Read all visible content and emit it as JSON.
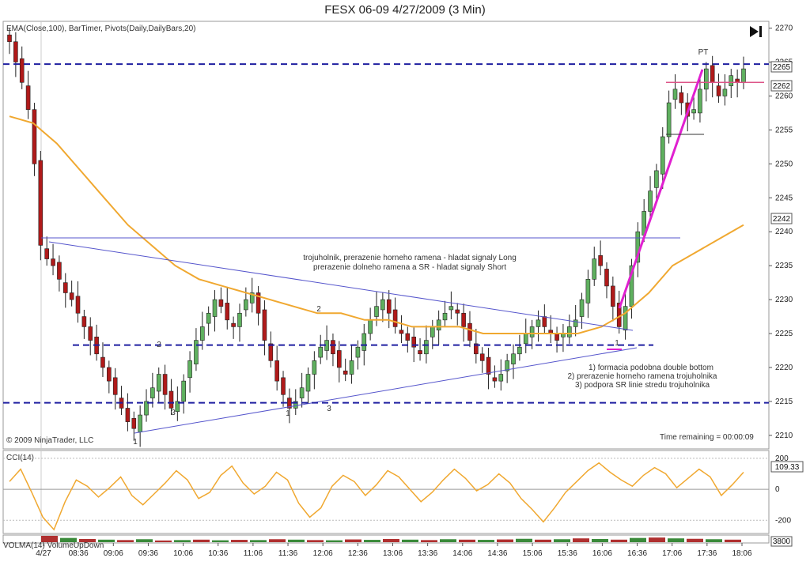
{
  "window": {
    "title": "FESX 06-09  4/27/2009 (3 Min)"
  },
  "header": {
    "indicators": "EMA(Close,100), BarTimer, Pivots(Daily,DailyBars,20)",
    "play_icon": "skip-to-end-icon"
  },
  "footer": {
    "copyright": "© 2009 NinjaTrader, LLC",
    "timer": "Time remaining = 00:00:09"
  },
  "annotations": {
    "note1_line1": "trojuholnik, prerazenie horneho ramena - hladat signaly Long",
    "note1_line2": "prerazenie dolneho ramena a SR - hladat signaly Short",
    "note2_line1": "1) formacia podobna double bottom",
    "note2_line2": "2) prerazenie horneho ramena trojuholnika",
    "note2_line3": "3) podpora SR linie stredu trojuholnika",
    "pt": "PT",
    "marks": [
      "1",
      "2",
      "3",
      "2",
      "1",
      "3",
      "1"
    ]
  },
  "price_axis": {
    "ticks": [
      "2270",
      "2265",
      "2260",
      "2255",
      "2250",
      "2245",
      "2240",
      "2235",
      "2230",
      "2225",
      "2220",
      "2215",
      "2210"
    ],
    "badges": [
      "2265",
      "2262",
      "2242"
    ]
  },
  "cci_panel": {
    "label": "CCI(14)",
    "ticks": [
      "200",
      "0",
      "-200"
    ],
    "badge": "109.33"
  },
  "volume_panel": {
    "label": "VOLMA(14) VolumeUpDown",
    "badge": "3800"
  },
  "time_axis": {
    "ticks": [
      "4/27",
      "08:36",
      "09:06",
      "09:36",
      "10:06",
      "10:36",
      "11:06",
      "11:36",
      "12:06",
      "12:36",
      "13:06",
      "13:36",
      "14:06",
      "14:36",
      "15:06",
      "15:36",
      "16:06",
      "16:36",
      "17:06",
      "17:36",
      "18:06"
    ]
  },
  "chart_data": {
    "type": "candlestick",
    "title": "FESX 06-09  4/27/2009 (3 Min)",
    "ylim": [
      2208,
      2271
    ],
    "levels": {
      "upper_sr": 2264.7,
      "middle_sr": 2223.3,
      "lower_sr": 2214.8,
      "pt_line": 2262
    },
    "closes": [
      2268,
      2265,
      2262,
      2258,
      2250,
      2238,
      2236,
      2235,
      2233,
      2231,
      2230,
      2228,
      2226,
      2224,
      2222,
      2220,
      2218,
      2216,
      2214,
      2212,
      2211,
      2213,
      2215,
      2217,
      2219,
      2216,
      2214,
      2215,
      2218,
      2221,
      2224,
      2226,
      2228,
      2230,
      2229,
      2227,
      2226,
      2228,
      2230,
      2231,
      2228,
      2224,
      2221,
      2218,
      2216,
      2214,
      2215,
      2217,
      2219,
      2221,
      2223,
      2224,
      2222,
      2220,
      2219,
      2221,
      2223,
      2225,
      2227,
      2229,
      2230,
      2228,
      2226,
      2225,
      2224,
      2223,
      2222,
      2224,
      2226,
      2227,
      2228,
      2229,
      2228,
      2226,
      2224,
      2222,
      2221,
      2219,
      2218,
      2219,
      2221,
      2222,
      2223,
      2225,
      2226,
      2227,
      2226,
      2225,
      2224,
      2225,
      2226,
      2227,
      2230,
      2233,
      2236,
      2235,
      2232,
      2229,
      2226,
      2229,
      2235,
      2240,
      2243,
      2246,
      2249,
      2254,
      2259,
      2261,
      2259,
      2257,
      2258,
      2261,
      2264,
      2262,
      2260,
      2261,
      2263,
      2262,
      2264
    ],
    "ema": [
      2257,
      2256,
      2253,
      2249,
      2245,
      2241,
      2238,
      2235,
      2233,
      2232,
      2231,
      2230,
      2229,
      2228,
      2228,
      2227,
      2227,
      2226,
      2226,
      2226,
      2225,
      2225,
      2225,
      2225,
      2225,
      2226,
      2228,
      2231,
      2235,
      2237,
      2239,
      2241
    ],
    "cci": {
      "ylim": [
        -280,
        240
      ],
      "ticks": [
        200,
        0,
        -200
      ],
      "last": 109.33,
      "values": [
        50,
        130,
        -20,
        -180,
        -260,
        -80,
        60,
        20,
        -50,
        10,
        80,
        -40,
        -100,
        -30,
        40,
        120,
        60,
        -60,
        -20,
        90,
        150,
        40,
        -30,
        20,
        110,
        60,
        -90,
        -180,
        -120,
        20,
        90,
        50,
        -40,
        30,
        120,
        80,
        0,
        -80,
        -20,
        60,
        130,
        70,
        -10,
        30,
        100,
        40,
        -60,
        -130,
        -210,
        -120,
        -20,
        50,
        120,
        170,
        110,
        60,
        20,
        90,
        140,
        100,
        10,
        70,
        130,
        80,
        -40,
        30,
        110
      ]
    },
    "volume": {
      "last": 3800,
      "bars": [
        30,
        20,
        15,
        12,
        10,
        14,
        8,
        10,
        12,
        9,
        11,
        10,
        14,
        12,
        10,
        9,
        13,
        11,
        15,
        12,
        10,
        14,
        12,
        11,
        13,
        16,
        12,
        14,
        18,
        15,
        12,
        20,
        22,
        18,
        16,
        14,
        12
      ]
    }
  }
}
